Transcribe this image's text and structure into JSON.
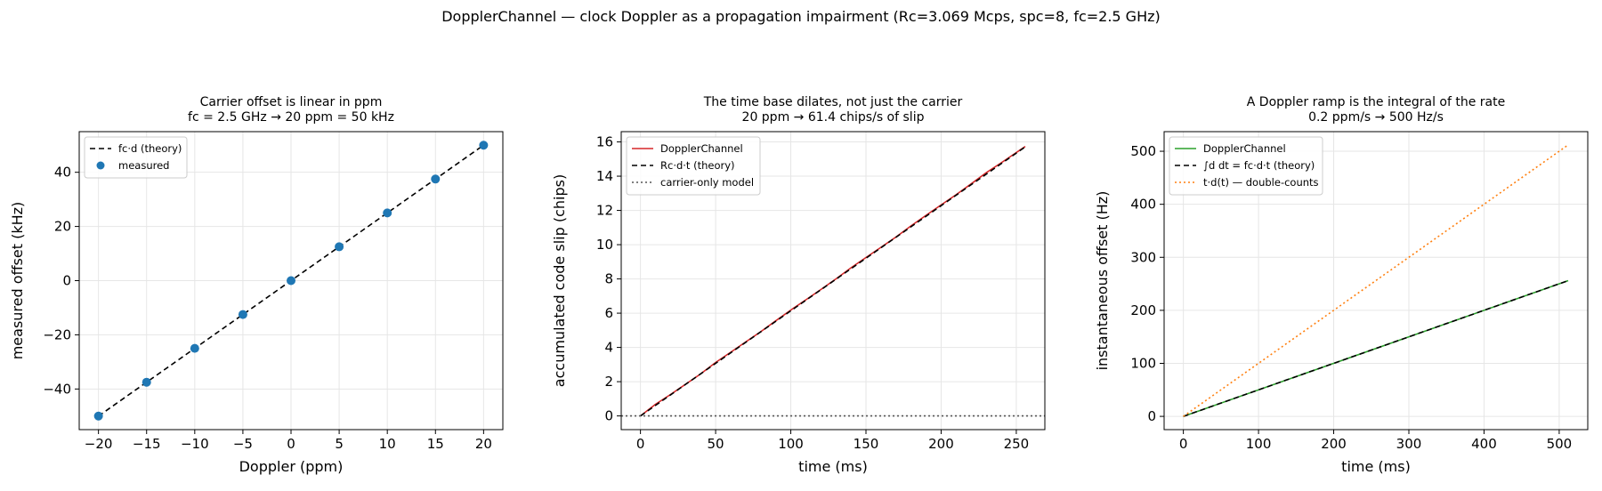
{
  "figure": {
    "suptitle": "DopplerChannel — clock Doppler as a propagation impairment (Rc=3.069 Mcps, spc=8, fc=2.5 GHz)"
  },
  "chart_data": [
    {
      "type": "scatter",
      "title_lines": [
        "Carrier offset is linear in ppm",
        "fc = 2.5 GHz → 20 ppm = 50 kHz"
      ],
      "xlabel": "Doppler (ppm)",
      "ylabel": "measured offset (kHz)",
      "xlim": [
        -22,
        22
      ],
      "ylim": [
        -55,
        55
      ],
      "xticks": [
        -20,
        -15,
        -10,
        -5,
        0,
        5,
        10,
        15,
        20
      ],
      "xtick_labels": [
        "−20",
        "−15",
        "−10",
        "−5",
        "0",
        "5",
        "10",
        "15",
        "20"
      ],
      "yticks": [
        -40,
        -20,
        0,
        20,
        40
      ],
      "ytick_labels": [
        "−40",
        "−20",
        "0",
        "20",
        "40"
      ],
      "grid": true,
      "legend_position": "upper-left",
      "series": [
        {
          "name": "fc·d (theory)",
          "kind": "line",
          "color": "#000000",
          "dash": "6,4",
          "x": [
            -20,
            20
          ],
          "y": [
            -50,
            50
          ]
        },
        {
          "name": "measured",
          "kind": "scatter",
          "color": "#1f77b4",
          "x": [
            -20,
            -15,
            -10,
            -5,
            0,
            5,
            10,
            15,
            20
          ],
          "y": [
            -50,
            -37.5,
            -25,
            -12.5,
            0,
            12.5,
            25,
            37.5,
            50
          ]
        }
      ]
    },
    {
      "type": "line",
      "title_lines": [
        "The time base dilates, not just the carrier",
        "20 ppm → 61.4 chips/s of slip"
      ],
      "xlabel": "time (ms)",
      "ylabel": "accumulated code slip (chips)",
      "xlim": [
        -12.8,
        269
      ],
      "ylim": [
        -0.8,
        16.6
      ],
      "xticks": [
        0,
        50,
        100,
        150,
        200,
        250
      ],
      "xtick_labels": [
        "0",
        "50",
        "100",
        "150",
        "200",
        "250"
      ],
      "yticks": [
        0,
        2,
        4,
        6,
        8,
        10,
        12,
        14,
        16
      ],
      "ytick_labels": [
        "0",
        "2",
        "4",
        "6",
        "8",
        "10",
        "12",
        "14",
        "16"
      ],
      "grid": true,
      "legend_position": "upper-left",
      "series": [
        {
          "name": "DopplerChannel",
          "kind": "line",
          "color": "#d62728",
          "dash": "",
          "x": [
            0,
            10,
            20,
            30,
            40,
            50,
            60,
            70,
            80,
            90,
            100,
            110,
            120,
            130,
            140,
            150,
            160,
            170,
            180,
            190,
            200,
            210,
            220,
            230,
            240,
            250,
            256
          ],
          "y": [
            0,
            0.68,
            1.25,
            1.85,
            2.45,
            3.12,
            3.72,
            4.32,
            4.92,
            5.55,
            6.18,
            6.78,
            7.38,
            8.0,
            8.65,
            9.25,
            9.85,
            10.45,
            11.1,
            11.72,
            12.32,
            12.92,
            13.55,
            14.2,
            14.78,
            15.38,
            15.74
          ]
        },
        {
          "name": "Rc·d·t (theory)",
          "kind": "line",
          "color": "#000000",
          "dash": "6,4",
          "x": [
            0,
            256
          ],
          "y": [
            0,
            15.71
          ]
        },
        {
          "name": "carrier-only model",
          "kind": "line",
          "color": "#555555",
          "dash": "2,3",
          "x": [
            -12.8,
            269
          ],
          "y": [
            0,
            0
          ]
        }
      ]
    },
    {
      "type": "line",
      "title_lines": [
        "A Doppler ramp is the integral of the rate",
        "0.2 ppm/s → 500 Hz/s"
      ],
      "xlabel": "time (ms)",
      "ylabel": "instantaneous offset (Hz)",
      "xlim": [
        -25.6,
        538
      ],
      "ylim": [
        -25,
        537
      ],
      "xticks": [
        0,
        100,
        200,
        300,
        400,
        500
      ],
      "xtick_labels": [
        "0",
        "100",
        "200",
        "300",
        "400",
        "500"
      ],
      "yticks": [
        0,
        100,
        200,
        300,
        400,
        500
      ],
      "ytick_labels": [
        "0",
        "100",
        "200",
        "300",
        "400",
        "500"
      ],
      "grid": true,
      "legend_position": "upper-left",
      "series": [
        {
          "name": "DopplerChannel",
          "kind": "line",
          "color": "#2ca02c",
          "dash": "",
          "x": [
            0,
            512
          ],
          "y": [
            0,
            256
          ]
        },
        {
          "name": "∫d dt = fc·d·t (theory)",
          "kind": "line",
          "color": "#000000",
          "dash": "6,4",
          "x": [
            0,
            512
          ],
          "y": [
            0,
            256
          ]
        },
        {
          "name": "t·d(t) — double-counts",
          "kind": "line",
          "color": "#ff7f0e",
          "dash": "2,3",
          "x": [
            0,
            512
          ],
          "y": [
            0,
            512
          ]
        }
      ]
    }
  ]
}
